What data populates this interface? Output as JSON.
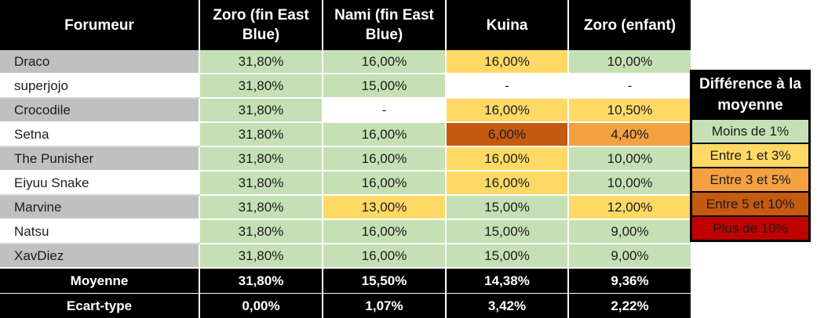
{
  "table": {
    "headers": [
      "Forumeur",
      "Zoro (fin East Blue)",
      "Nami (fin East Blue)",
      "Kuina",
      "Zoro (enfant)"
    ],
    "rows": [
      {
        "name": "Draco",
        "name_bg": "gray",
        "cells": [
          {
            "v": "31,80%",
            "c": "g"
          },
          {
            "v": "16,00%",
            "c": "g"
          },
          {
            "v": "16,00%",
            "c": "y"
          },
          {
            "v": "10,00%",
            "c": "g"
          }
        ]
      },
      {
        "name": "superjojo",
        "name_bg": "white",
        "cells": [
          {
            "v": "31,80%",
            "c": "g"
          },
          {
            "v": "15,00%",
            "c": "g"
          },
          {
            "v": "-",
            "c": "w"
          },
          {
            "v": "-",
            "c": "w"
          }
        ]
      },
      {
        "name": "Crocodile",
        "name_bg": "gray",
        "cells": [
          {
            "v": "31,80%",
            "c": "g"
          },
          {
            "v": "-",
            "c": "w"
          },
          {
            "v": "16,00%",
            "c": "y"
          },
          {
            "v": "10,50%",
            "c": "y"
          }
        ]
      },
      {
        "name": "Setna",
        "name_bg": "white",
        "cells": [
          {
            "v": "31,80%",
            "c": "g"
          },
          {
            "v": "16,00%",
            "c": "g"
          },
          {
            "v": "6,00%",
            "c": "do"
          },
          {
            "v": "4,40%",
            "c": "o"
          }
        ]
      },
      {
        "name": "The Punisher",
        "name_bg": "gray",
        "cells": [
          {
            "v": "31,80%",
            "c": "g"
          },
          {
            "v": "16,00%",
            "c": "g"
          },
          {
            "v": "16,00%",
            "c": "y"
          },
          {
            "v": "10,00%",
            "c": "g"
          }
        ]
      },
      {
        "name": "Eiyuu Snake",
        "name_bg": "white",
        "cells": [
          {
            "v": "31,80%",
            "c": "g"
          },
          {
            "v": "16,00%",
            "c": "g"
          },
          {
            "v": "16,00%",
            "c": "y"
          },
          {
            "v": "10,00%",
            "c": "g"
          }
        ]
      },
      {
        "name": "Marvine",
        "name_bg": "gray",
        "cells": [
          {
            "v": "31,80%",
            "c": "g"
          },
          {
            "v": "13,00%",
            "c": "y"
          },
          {
            "v": "15,00%",
            "c": "g"
          },
          {
            "v": "12,00%",
            "c": "y"
          }
        ]
      },
      {
        "name": "Natsu",
        "name_bg": "white",
        "cells": [
          {
            "v": "31,80%",
            "c": "g"
          },
          {
            "v": "16,00%",
            "c": "g"
          },
          {
            "v": "15,00%",
            "c": "g"
          },
          {
            "v": "9,00%",
            "c": "g"
          }
        ]
      },
      {
        "name": "XavDiez",
        "name_bg": "gray",
        "cells": [
          {
            "v": "31,80%",
            "c": "g"
          },
          {
            "v": "16,00%",
            "c": "g"
          },
          {
            "v": "15,00%",
            "c": "g"
          },
          {
            "v": "9,00%",
            "c": "g"
          }
        ]
      }
    ],
    "footer": [
      {
        "label": "Moyenne",
        "values": [
          "31,80%",
          "15,50%",
          "14,38%",
          "9,36%"
        ]
      },
      {
        "label": "Ecart-type",
        "values": [
          "0,00%",
          "1,07%",
          "3,42%",
          "2,22%"
        ]
      }
    ]
  },
  "legend": {
    "title": "Différence à la moyenne",
    "items": [
      {
        "label": "Moins de 1%",
        "c": "g"
      },
      {
        "label": "Entre 1 et 3%",
        "c": "y"
      },
      {
        "label": "Entre 3 et 5%",
        "c": "o"
      },
      {
        "label": "Entre 5 et 10%",
        "c": "do"
      },
      {
        "label": "Plus de 10%",
        "c": "r"
      }
    ]
  },
  "colors": {
    "g": "#c5e0b4",
    "y": "#ffd966",
    "o": "#f4a142",
    "do": "#c55a11",
    "r": "#c00000",
    "gray": "#c0c0c0",
    "header": "#000000"
  }
}
